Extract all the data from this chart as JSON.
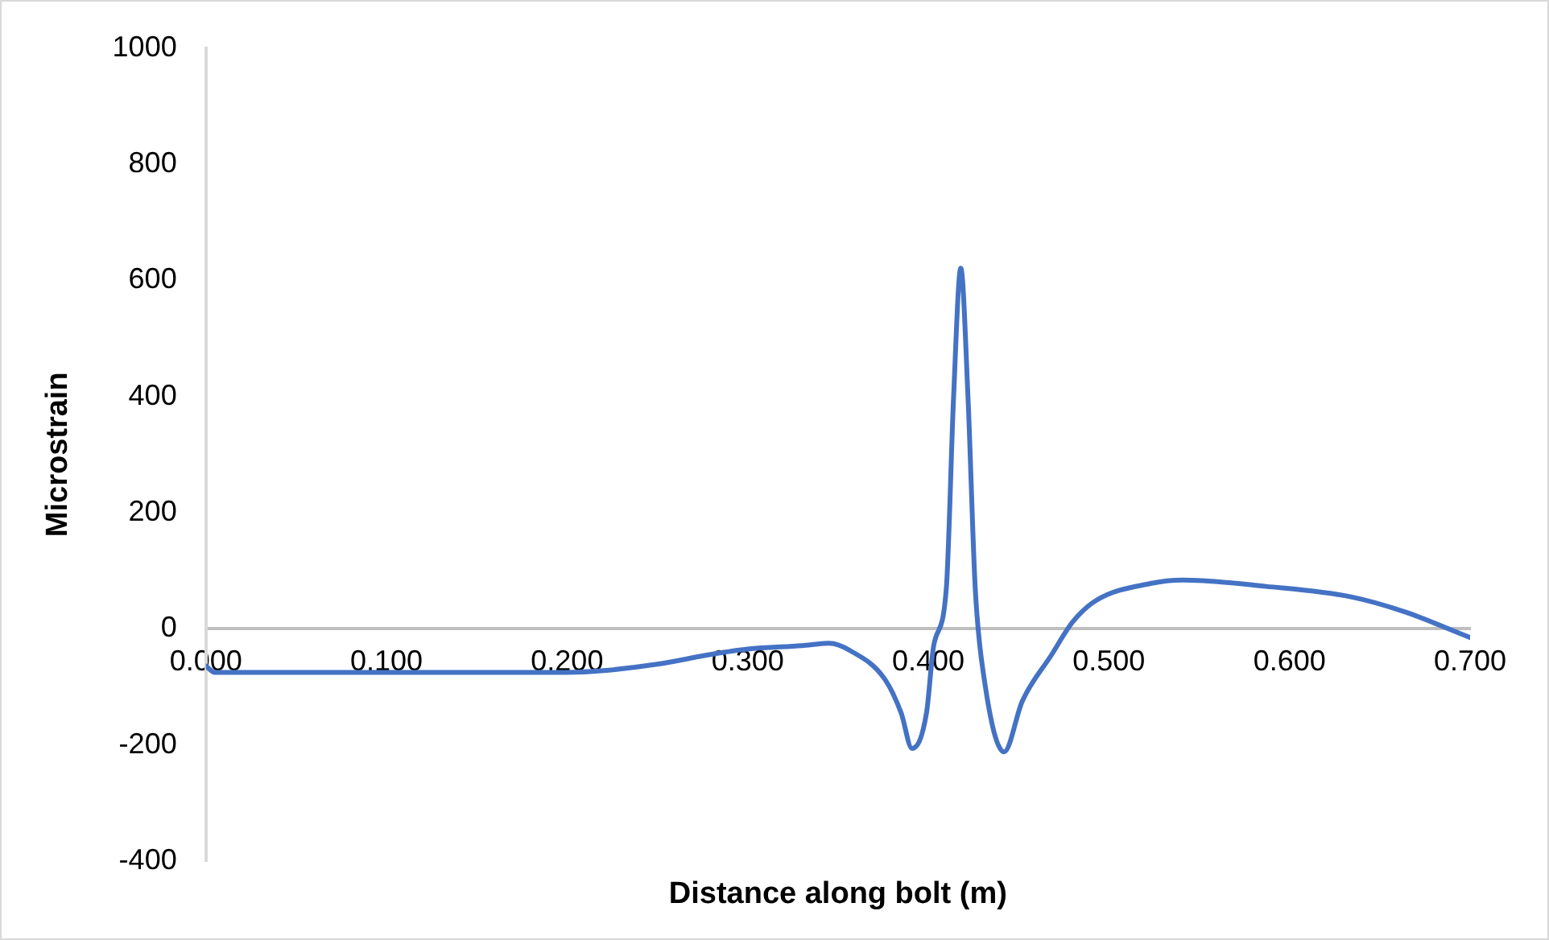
{
  "chart_data": {
    "type": "line",
    "xlabel": "Distance along bolt (m)",
    "ylabel": "Microstrain",
    "x": [
      0,
      0.005,
      0.1,
      0.2,
      0.22,
      0.25,
      0.28,
      0.3,
      0.33,
      0.345,
      0.357,
      0.376,
      0.385,
      0.391,
      0.399,
      0.403,
      0.41,
      0.414,
      0.418,
      0.422,
      0.426,
      0.431,
      0.442,
      0.452,
      0.468,
      0.48,
      0.493,
      0.523,
      0.541,
      0.587,
      0.634,
      0.664,
      0.7
    ],
    "series": [
      {
        "color": "#4472c4",
        "values": [
          -64,
          -75,
          -75,
          -75,
          -72,
          -61,
          -44,
          -35,
          -29,
          -25,
          -38,
          -87,
          -145,
          -206,
          -145,
          -29,
          70,
          398,
          621,
          398,
          70,
          -87,
          -212,
          -125,
          -46,
          12,
          49,
          78,
          84,
          73,
          55,
          29,
          -15
        ]
      }
    ],
    "xlim": [
      0,
      0.7
    ],
    "ylim": [
      -400,
      1000
    ],
    "xticks": [
      {
        "value": 0,
        "label": "0.000"
      },
      {
        "value": 0.1,
        "label": "0.100"
      },
      {
        "value": 0.2,
        "label": "0.200"
      },
      {
        "value": 0.3,
        "label": "0.300"
      },
      {
        "value": 0.4,
        "label": "0.400"
      },
      {
        "value": 0.5,
        "label": "0.500"
      },
      {
        "value": 0.6,
        "label": "0.600"
      },
      {
        "value": 0.7,
        "label": "0.700"
      }
    ],
    "yticks": [
      -400,
      -200,
      0,
      200,
      400,
      600,
      800,
      1000
    ],
    "grid": false,
    "legend": false,
    "marker": "none",
    "line_style": "solid"
  }
}
